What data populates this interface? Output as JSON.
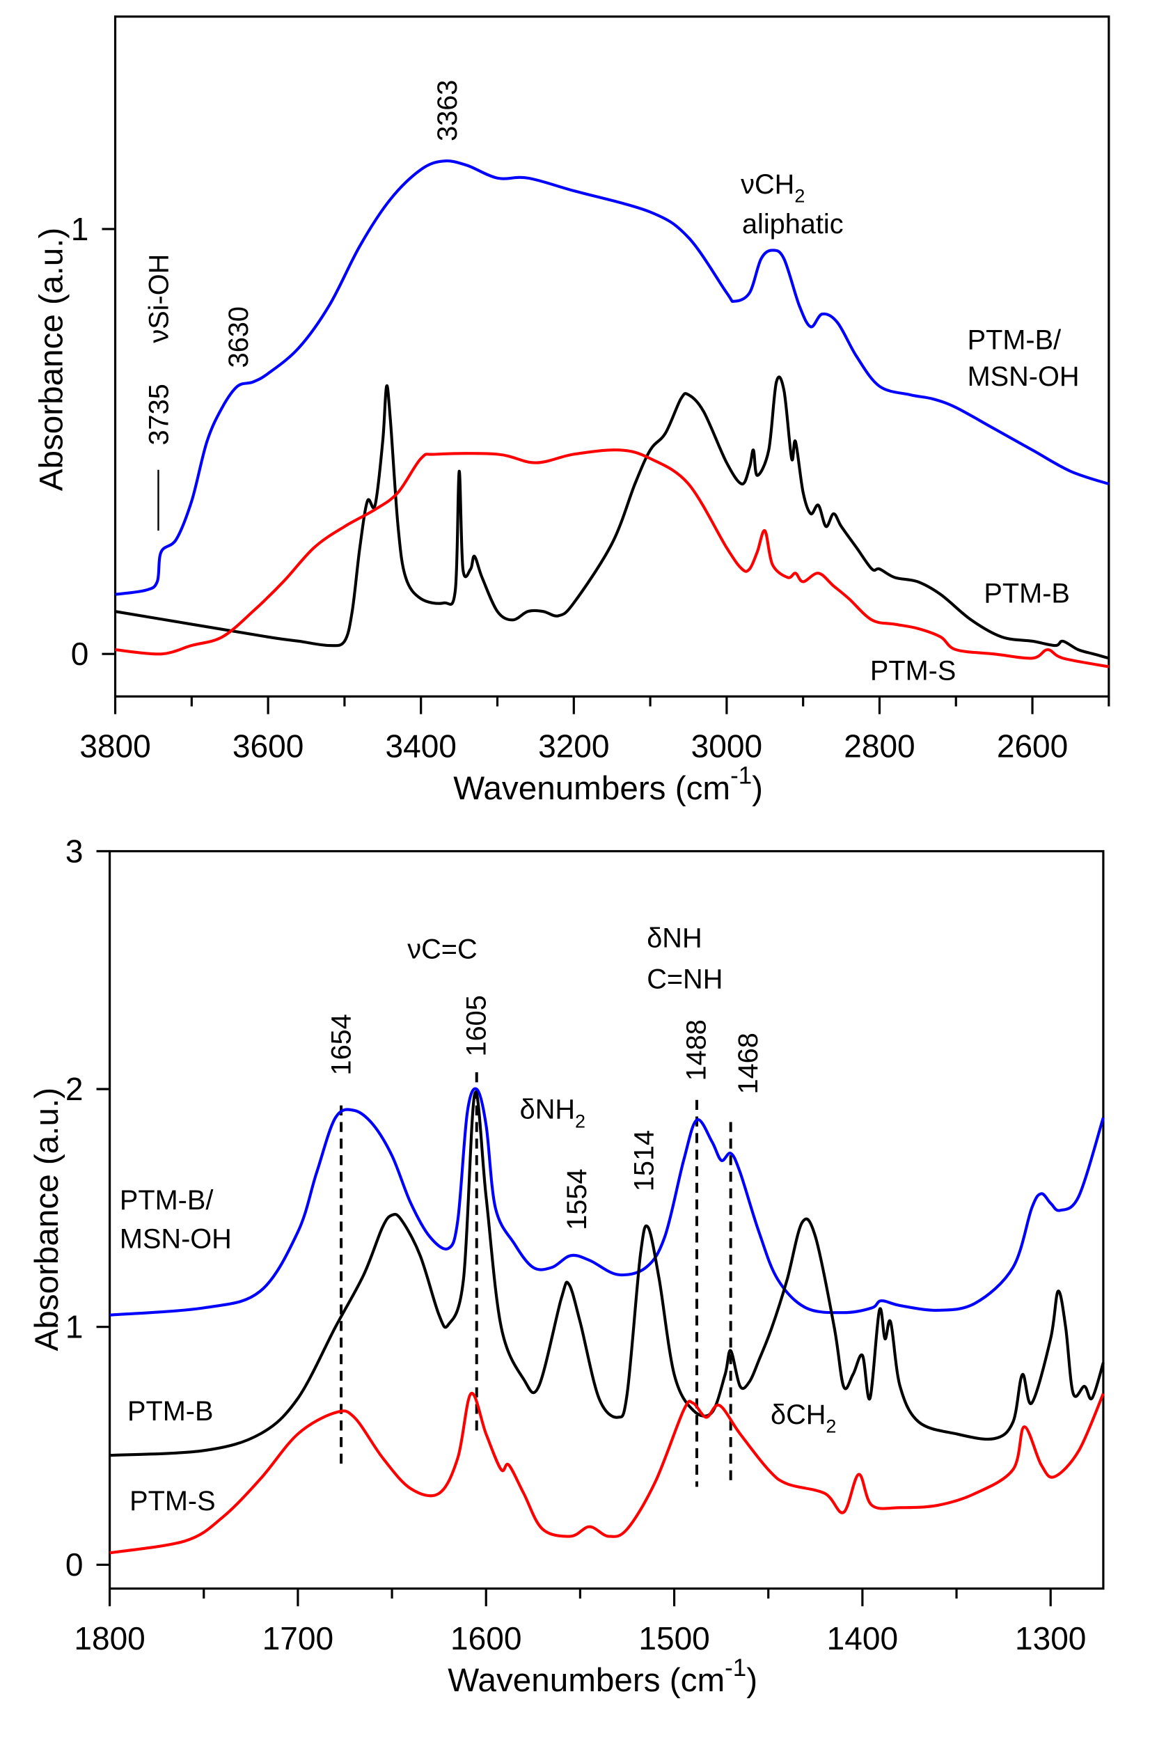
{
  "chart_data": [
    {
      "type": "line",
      "title": "",
      "xlabel": "Wavenumbers (cm",
      "xlabel_sup": "-1",
      "xlabel_end": ")",
      "ylabel": "Absorbance (a.u.)",
      "xlim": [
        3800,
        2500
      ],
      "ylim": [
        -0.1,
        1.5
      ],
      "xticks": [
        3800,
        3600,
        3400,
        3200,
        3000,
        2800,
        2600
      ],
      "yticks": [
        0,
        1
      ],
      "grid": false,
      "series": [
        {
          "name": "PTM-B/ MSN-OH",
          "color": "#0000ff",
          "x": [
            3800,
            3760,
            3745,
            3740,
            3720,
            3700,
            3680,
            3660,
            3640,
            3620,
            3600,
            3560,
            3520,
            3480,
            3440,
            3400,
            3370,
            3340,
            3300,
            3260,
            3200,
            3100,
            3050,
            3000,
            2990,
            2970,
            2955,
            2940,
            2925,
            2905,
            2890,
            2875,
            2855,
            2830,
            2800,
            2760,
            2730,
            2700,
            2650,
            2600,
            2550,
            2500
          ],
          "y": [
            0.14,
            0.15,
            0.17,
            0.24,
            0.27,
            0.36,
            0.5,
            0.58,
            0.63,
            0.64,
            0.66,
            0.72,
            0.82,
            0.96,
            1.07,
            1.14,
            1.16,
            1.15,
            1.12,
            1.12,
            1.09,
            1.04,
            0.98,
            0.85,
            0.83,
            0.85,
            0.93,
            0.95,
            0.93,
            0.82,
            0.77,
            0.8,
            0.78,
            0.7,
            0.63,
            0.61,
            0.6,
            0.58,
            0.53,
            0.48,
            0.43,
            0.4
          ]
        },
        {
          "name": "PTM-B",
          "color": "#000000",
          "x": [
            3800,
            3700,
            3600,
            3560,
            3520,
            3500,
            3490,
            3480,
            3470,
            3460,
            3450,
            3445,
            3440,
            3430,
            3420,
            3400,
            3370,
            3355,
            3350,
            3345,
            3335,
            3330,
            3320,
            3300,
            3280,
            3260,
            3240,
            3220,
            3200,
            3150,
            3120,
            3100,
            3080,
            3060,
            3050,
            3030,
            3000,
            2980,
            2970,
            2965,
            2960,
            2945,
            2935,
            2925,
            2915,
            2910,
            2900,
            2890,
            2880,
            2870,
            2860,
            2850,
            2830,
            2810,
            2800,
            2780,
            2750,
            2720,
            2680,
            2640,
            2600,
            2570,
            2560,
            2540,
            2520,
            2500
          ],
          "y": [
            0.1,
            0.07,
            0.04,
            0.03,
            0.02,
            0.03,
            0.1,
            0.25,
            0.36,
            0.35,
            0.5,
            0.63,
            0.55,
            0.3,
            0.18,
            0.13,
            0.12,
            0.15,
            0.43,
            0.2,
            0.2,
            0.23,
            0.18,
            0.1,
            0.08,
            0.1,
            0.1,
            0.09,
            0.12,
            0.26,
            0.4,
            0.48,
            0.52,
            0.6,
            0.61,
            0.57,
            0.45,
            0.4,
            0.44,
            0.48,
            0.42,
            0.48,
            0.64,
            0.62,
            0.46,
            0.5,
            0.38,
            0.33,
            0.35,
            0.3,
            0.33,
            0.3,
            0.25,
            0.2,
            0.2,
            0.18,
            0.17,
            0.14,
            0.08,
            0.04,
            0.03,
            0.02,
            0.03,
            0.01,
            0.0,
            -0.01
          ]
        },
        {
          "name": "PTM-S",
          "color": "#ff0000",
          "x": [
            3800,
            3740,
            3700,
            3660,
            3620,
            3580,
            3540,
            3500,
            3460,
            3430,
            3400,
            3380,
            3300,
            3250,
            3200,
            3140,
            3100,
            3050,
            3000,
            2980,
            2970,
            2960,
            2950,
            2940,
            2920,
            2910,
            2900,
            2880,
            2860,
            2840,
            2810,
            2780,
            2750,
            2720,
            2700,
            2650,
            2600,
            2580,
            2560,
            2500
          ],
          "y": [
            0.01,
            0.0,
            0.02,
            0.04,
            0.1,
            0.17,
            0.25,
            0.3,
            0.34,
            0.38,
            0.46,
            0.47,
            0.47,
            0.45,
            0.47,
            0.48,
            0.46,
            0.4,
            0.25,
            0.2,
            0.2,
            0.24,
            0.29,
            0.21,
            0.18,
            0.19,
            0.17,
            0.19,
            0.16,
            0.13,
            0.08,
            0.07,
            0.06,
            0.04,
            0.01,
            0.0,
            -0.01,
            0.01,
            -0.01,
            -0.03
          ]
        }
      ],
      "annotations": [
        "3363",
        "3735",
        "3630",
        "νSi-OH",
        "νCH",
        "2",
        "aliphatic",
        "PTM-B/",
        "MSN-OH",
        "PTM-B",
        "PTM-S"
      ]
    },
    {
      "type": "line",
      "title": "",
      "xlabel": "Wavenumbers (cm",
      "xlabel_sup": "-1",
      "xlabel_end": ")",
      "ylabel": "Absorbance (a.u.)",
      "xlim": [
        1800,
        1272
      ],
      "ylim": [
        -0.1,
        3
      ],
      "xticks": [
        1800,
        1700,
        1600,
        1500,
        1400,
        1300
      ],
      "yticks": [
        0,
        1,
        2,
        3
      ],
      "grid": false,
      "series": [
        {
          "name": "PTM-B/ MSN-OH",
          "color": "#0000ff",
          "x": [
            1800,
            1750,
            1720,
            1700,
            1690,
            1680,
            1670,
            1660,
            1650,
            1640,
            1630,
            1620,
            1615,
            1610,
            1605,
            1600,
            1595,
            1585,
            1575,
            1565,
            1555,
            1545,
            1530,
            1515,
            1505,
            1495,
            1488,
            1480,
            1475,
            1470,
            1465,
            1455,
            1445,
            1430,
            1410,
            1395,
            1390,
            1380,
            1360,
            1340,
            1320,
            1310,
            1305,
            1300,
            1295,
            1285,
            1272
          ],
          "y": [
            1.05,
            1.08,
            1.15,
            1.4,
            1.65,
            1.88,
            1.91,
            1.85,
            1.72,
            1.52,
            1.38,
            1.33,
            1.45,
            1.9,
            2.0,
            1.85,
            1.5,
            1.35,
            1.25,
            1.25,
            1.3,
            1.28,
            1.22,
            1.25,
            1.38,
            1.7,
            1.87,
            1.78,
            1.7,
            1.73,
            1.65,
            1.4,
            1.2,
            1.08,
            1.06,
            1.08,
            1.11,
            1.09,
            1.07,
            1.1,
            1.25,
            1.5,
            1.56,
            1.52,
            1.49,
            1.55,
            1.88
          ]
        },
        {
          "name": "PTM-B",
          "color": "#000000",
          "x": [
            1800,
            1750,
            1720,
            1700,
            1680,
            1665,
            1655,
            1650,
            1645,
            1635,
            1625,
            1620,
            1612,
            1606,
            1600,
            1592,
            1580,
            1572,
            1560,
            1556,
            1550,
            1540,
            1530,
            1525,
            1518,
            1514,
            1508,
            1500,
            1490,
            1480,
            1473,
            1470,
            1465,
            1460,
            1455,
            1448,
            1440,
            1432,
            1425,
            1415,
            1410,
            1405,
            1400,
            1396,
            1391,
            1388,
            1385,
            1380,
            1370,
            1350,
            1330,
            1320,
            1315,
            1310,
            1300,
            1296,
            1292,
            1288,
            1282,
            1278,
            1272
          ],
          "y": [
            0.46,
            0.48,
            0.55,
            0.7,
            1.0,
            1.22,
            1.42,
            1.47,
            1.45,
            1.3,
            1.05,
            1.01,
            1.2,
            1.98,
            1.55,
            1.0,
            0.78,
            0.75,
            1.12,
            1.18,
            1.02,
            0.7,
            0.62,
            0.72,
            1.3,
            1.42,
            1.2,
            0.8,
            0.65,
            0.64,
            0.8,
            0.9,
            0.75,
            0.77,
            0.86,
            1.0,
            1.2,
            1.44,
            1.38,
            1.0,
            0.75,
            0.8,
            0.88,
            0.7,
            1.07,
            0.95,
            1.02,
            0.75,
            0.6,
            0.55,
            0.53,
            0.6,
            0.8,
            0.68,
            0.95,
            1.15,
            1.0,
            0.72,
            0.75,
            0.7,
            0.85
          ]
        },
        {
          "name": "PTM-S",
          "color": "#ff0000",
          "x": [
            1800,
            1760,
            1740,
            1720,
            1700,
            1680,
            1670,
            1655,
            1640,
            1625,
            1615,
            1608,
            1600,
            1592,
            1588,
            1580,
            1570,
            1555,
            1545,
            1535,
            1525,
            1510,
            1495,
            1490,
            1483,
            1476,
            1465,
            1450,
            1440,
            1420,
            1410,
            1402,
            1395,
            1380,
            1360,
            1340,
            1320,
            1314,
            1305,
            1298,
            1285,
            1272
          ],
          "y": [
            0.05,
            0.1,
            0.2,
            0.36,
            0.55,
            0.64,
            0.62,
            0.45,
            0.32,
            0.3,
            0.45,
            0.72,
            0.55,
            0.4,
            0.42,
            0.3,
            0.15,
            0.12,
            0.16,
            0.12,
            0.15,
            0.35,
            0.65,
            0.68,
            0.62,
            0.67,
            0.55,
            0.4,
            0.34,
            0.3,
            0.22,
            0.38,
            0.25,
            0.24,
            0.25,
            0.3,
            0.4,
            0.58,
            0.42,
            0.37,
            0.48,
            0.72
          ]
        }
      ],
      "dashed_markers": [
        1677,
        1605,
        1488,
        1470
      ],
      "annotations": [
        "νC=C",
        "δNH",
        "C=NH",
        "1654",
        "1605",
        "δNH",
        "2",
        "1554",
        "1514",
        "1488",
        "1468",
        "PTM-B/",
        "MSN-OH",
        "PTM-B",
        "PTM-S",
        "δCH",
        "2"
      ]
    }
  ]
}
